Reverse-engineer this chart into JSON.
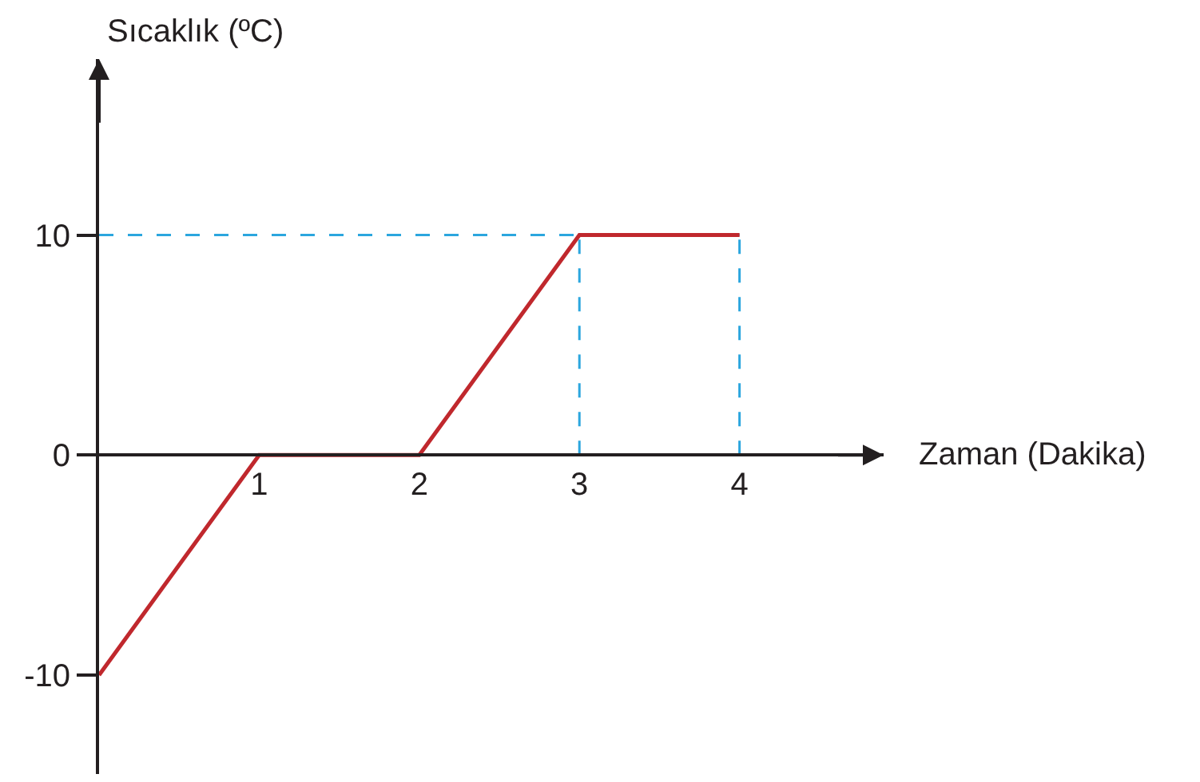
{
  "chart_data": {
    "type": "line",
    "xlabel": "Zaman (Dakika)",
    "ylabel": "Sıcaklık (ºC)",
    "x": [
      0,
      1,
      2,
      3,
      4
    ],
    "series": [
      {
        "color": "#c0282d",
        "values": [
          -10,
          0,
          0,
          10,
          10
        ]
      }
    ],
    "xlim": [
      0,
      4.9
    ],
    "ylim": [
      -14.5,
      18
    ],
    "xticks": [
      1,
      2,
      3,
      4
    ],
    "yticks": [
      -10,
      0,
      10
    ],
    "line_style": "solid",
    "ref_lines": [
      {
        "axis": "y",
        "value": 10,
        "color": "#2ba6de",
        "line_style": "dashed"
      },
      {
        "axis": "x",
        "value": 3,
        "color": "#2ba6de",
        "line_style": "dashed"
      },
      {
        "axis": "x",
        "value": 4,
        "color": "#2ba6de",
        "line_style": "dashed"
      }
    ]
  }
}
